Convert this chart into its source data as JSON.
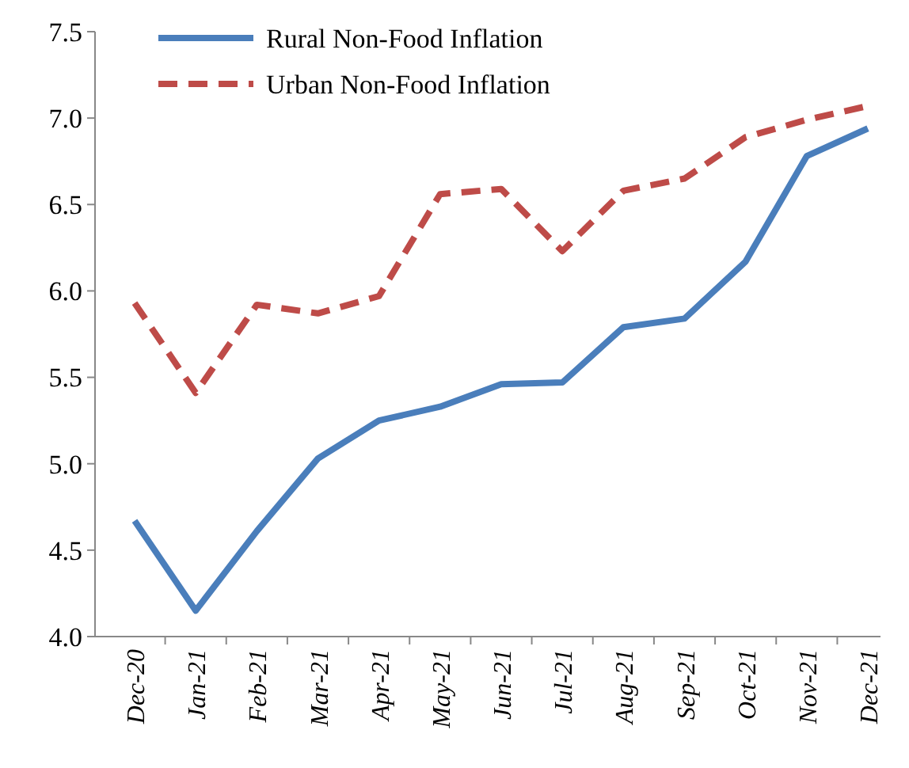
{
  "chart_data": {
    "type": "line",
    "categories": [
      "Dec-20",
      "Jan-21",
      "Feb-21",
      "Mar-21",
      "Apr-21",
      "May-21",
      "Jun-21",
      "Jul-21",
      "Aug-21",
      "Sep-21",
      "Oct-21",
      "Nov-21",
      "Dec-21"
    ],
    "series": [
      {
        "name": "Rural Non-Food Inflation",
        "color": "#4a7ebb",
        "line_style": "solid",
        "values": [
          4.67,
          4.15,
          4.61,
          5.03,
          5.25,
          5.33,
          5.46,
          5.47,
          5.79,
          5.84,
          6.17,
          6.78,
          6.94
        ]
      },
      {
        "name": "Urban Non-Food Inflation",
        "color": "#be4b48",
        "line_style": "dashed",
        "values": [
          5.93,
          5.41,
          5.92,
          5.87,
          5.97,
          6.56,
          6.59,
          6.23,
          6.58,
          6.65,
          6.89,
          6.99,
          7.07
        ]
      }
    ],
    "ylim": [
      4,
      7.5
    ],
    "yticks": [
      {
        "value": 4,
        "label": "4.0"
      },
      {
        "value": 4.5,
        "label": "4.5"
      },
      {
        "value": 5,
        "label": "5.0"
      },
      {
        "value": 5.5,
        "label": "5.5"
      },
      {
        "value": 6,
        "label": "6.0"
      },
      {
        "value": 6.5,
        "label": "6.5"
      },
      {
        "value": 7,
        "label": "7.0"
      },
      {
        "value": 7.5,
        "label": "7.5"
      }
    ],
    "grid": false,
    "legend": "top left"
  }
}
